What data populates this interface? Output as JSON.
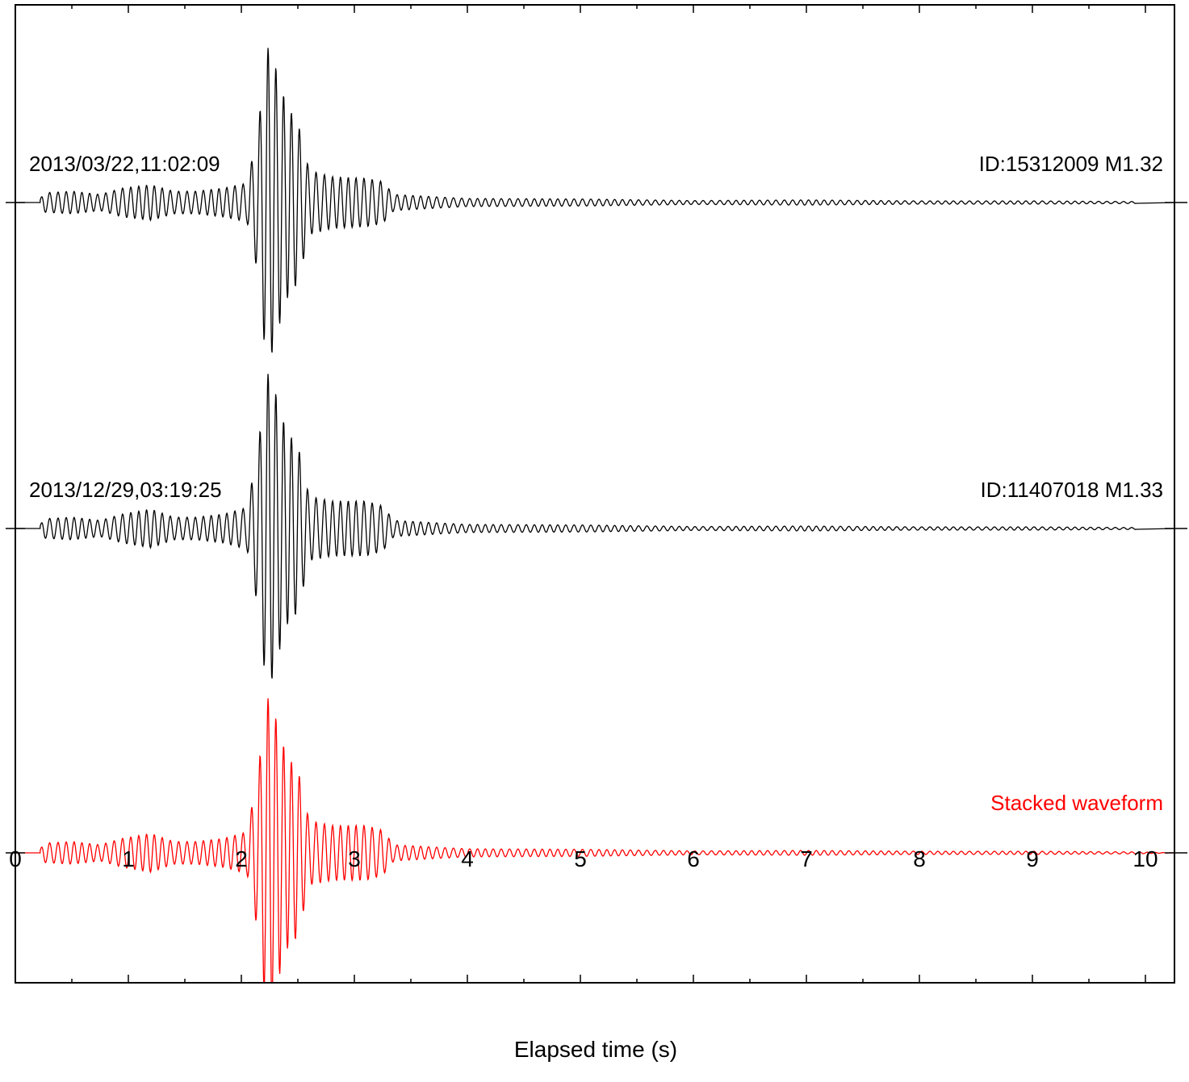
{
  "chart_data": {
    "type": "line",
    "xlabel": "Elapsed time (s)",
    "ylabel": "",
    "xlim": [
      0,
      10.25
    ],
    "xticks": [
      "0",
      "1",
      "2",
      "3",
      "4",
      "5",
      "6",
      "7",
      "8",
      "9",
      "10"
    ],
    "x_minor_step": 0.5,
    "grid": false,
    "legend": "none",
    "traces": [
      {
        "left_label": "2013/03/22,11:02:09",
        "right_label": "ID:15312009 M1.32",
        "color": "#000000",
        "start_time": 0.22,
        "end_time": 9.92,
        "envelope": [
          [
            0.22,
            0.02
          ],
          [
            0.25,
            0.06
          ],
          [
            0.5,
            0.07
          ],
          [
            0.75,
            0.05
          ],
          [
            0.95,
            0.09
          ],
          [
            1.2,
            0.11
          ],
          [
            1.4,
            0.07
          ],
          [
            1.6,
            0.07
          ],
          [
            1.85,
            0.09
          ],
          [
            2.05,
            0.12
          ],
          [
            2.15,
            0.45
          ],
          [
            2.2,
            0.85
          ],
          [
            2.25,
            1.0
          ],
          [
            2.3,
            0.85
          ],
          [
            2.4,
            0.6
          ],
          [
            2.5,
            0.5
          ],
          [
            2.6,
            0.2
          ],
          [
            2.8,
            0.16
          ],
          [
            3.1,
            0.15
          ],
          [
            3.25,
            0.13
          ],
          [
            3.35,
            0.05
          ],
          [
            3.6,
            0.04
          ],
          [
            4.0,
            0.025
          ],
          [
            5.0,
            0.022
          ],
          [
            6.0,
            0.012
          ],
          [
            7.0,
            0.016
          ],
          [
            8.0,
            0.01
          ],
          [
            9.0,
            0.01
          ],
          [
            9.92,
            0.006
          ]
        ]
      },
      {
        "left_label": "2013/12/29,03:19:25",
        "right_label": "ID:11407018 M1.33",
        "color": "#000000",
        "start_time": 0.22,
        "end_time": 9.92,
        "envelope": [
          [
            0.22,
            0.02
          ],
          [
            0.25,
            0.06
          ],
          [
            0.5,
            0.07
          ],
          [
            0.75,
            0.05
          ],
          [
            0.95,
            0.09
          ],
          [
            1.2,
            0.12
          ],
          [
            1.4,
            0.07
          ],
          [
            1.6,
            0.07
          ],
          [
            1.85,
            0.09
          ],
          [
            2.05,
            0.13
          ],
          [
            2.15,
            0.5
          ],
          [
            2.2,
            0.85
          ],
          [
            2.25,
            1.0
          ],
          [
            2.3,
            0.85
          ],
          [
            2.4,
            0.6
          ],
          [
            2.5,
            0.52
          ],
          [
            2.6,
            0.2
          ],
          [
            2.8,
            0.17
          ],
          [
            3.1,
            0.17
          ],
          [
            3.25,
            0.14
          ],
          [
            3.35,
            0.05
          ],
          [
            3.6,
            0.04
          ],
          [
            4.0,
            0.025
          ],
          [
            5.0,
            0.022
          ],
          [
            6.0,
            0.012
          ],
          [
            7.0,
            0.015
          ],
          [
            8.0,
            0.01
          ],
          [
            9.0,
            0.01
          ],
          [
            9.92,
            0.006
          ]
        ]
      },
      {
        "left_label": "",
        "right_label": "Stacked waveform",
        "color": "#ff0000",
        "start_time": 0.22,
        "end_time": 10.25,
        "envelope": [
          [
            0.22,
            0.02
          ],
          [
            0.25,
            0.06
          ],
          [
            0.5,
            0.07
          ],
          [
            0.75,
            0.05
          ],
          [
            0.95,
            0.09
          ],
          [
            1.2,
            0.12
          ],
          [
            1.4,
            0.07
          ],
          [
            1.6,
            0.07
          ],
          [
            1.85,
            0.09
          ],
          [
            2.05,
            0.13
          ],
          [
            2.15,
            0.5
          ],
          [
            2.2,
            0.85
          ],
          [
            2.25,
            1.0
          ],
          [
            2.3,
            0.85
          ],
          [
            2.4,
            0.6
          ],
          [
            2.5,
            0.52
          ],
          [
            2.6,
            0.2
          ],
          [
            2.8,
            0.17
          ],
          [
            3.1,
            0.17
          ],
          [
            3.25,
            0.14
          ],
          [
            3.35,
            0.05
          ],
          [
            3.6,
            0.04
          ],
          [
            4.0,
            0.025
          ],
          [
            5.0,
            0.022
          ],
          [
            6.0,
            0.012
          ],
          [
            7.0,
            0.015
          ],
          [
            8.0,
            0.01
          ],
          [
            9.0,
            0.01
          ],
          [
            9.92,
            0.006
          ],
          [
            10.25,
            0.0
          ]
        ]
      }
    ]
  }
}
